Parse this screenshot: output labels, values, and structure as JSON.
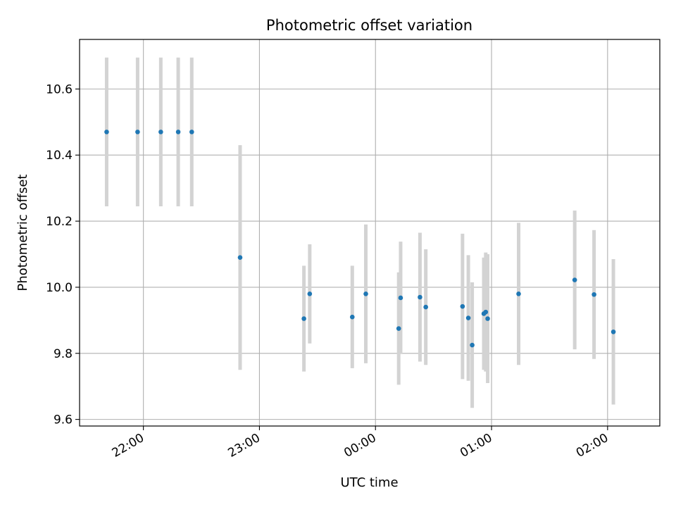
{
  "chart_data": {
    "type": "scatter",
    "title": "Photometric offset variation",
    "xlabel": "UTC time",
    "ylabel": "Photometric offset",
    "x_axis_type": "time",
    "x_range": [
      "21:27",
      "02:27"
    ],
    "ylim": [
      9.58,
      10.75
    ],
    "y_ticks": [
      9.6,
      9.8,
      10.0,
      10.2,
      10.4,
      10.6
    ],
    "y_tick_labels": [
      "9.6",
      "9.8",
      "10.0",
      "10.2",
      "10.4",
      "10.6"
    ],
    "x_ticks": [
      "22:00",
      "23:00",
      "00:00",
      "01:00",
      "02:00"
    ],
    "x_tick_labels": [
      "22:00",
      "23:00",
      "00:00",
      "01:00",
      "02:00"
    ],
    "grid": true,
    "marker_color": "#1f77b4",
    "errorbar_color": "#d3d3d3",
    "points": [
      {
        "x": "21:41",
        "y": 10.47,
        "yerr": 0.225
      },
      {
        "x": "21:57",
        "y": 10.47,
        "yerr": 0.225
      },
      {
        "x": "22:09",
        "y": 10.47,
        "yerr": 0.225
      },
      {
        "x": "22:18",
        "y": 10.47,
        "yerr": 0.225
      },
      {
        "x": "22:25",
        "y": 10.47,
        "yerr": 0.225
      },
      {
        "x": "22:50",
        "y": 10.09,
        "yerr": 0.34
      },
      {
        "x": "23:23",
        "y": 9.905,
        "yerr": 0.16
      },
      {
        "x": "23:26",
        "y": 9.98,
        "yerr": 0.15
      },
      {
        "x": "23:48",
        "y": 9.91,
        "yerr": 0.155
      },
      {
        "x": "23:55",
        "y": 9.98,
        "yerr": 0.21
      },
      {
        "x": "00:12",
        "y": 9.875,
        "yerr": 0.17
      },
      {
        "x": "00:13",
        "y": 9.968,
        "yerr": 0.17
      },
      {
        "x": "00:23",
        "y": 9.97,
        "yerr": 0.195
      },
      {
        "x": "00:26",
        "y": 9.94,
        "yerr": 0.175
      },
      {
        "x": "00:45",
        "y": 9.942,
        "yerr": 0.22
      },
      {
        "x": "00:48",
        "y": 9.907,
        "yerr": 0.19
      },
      {
        "x": "00:50",
        "y": 9.825,
        "yerr": 0.19
      },
      {
        "x": "00:56",
        "y": 9.92,
        "yerr": 0.17
      },
      {
        "x": "00:57",
        "y": 9.925,
        "yerr": 0.18
      },
      {
        "x": "00:58",
        "y": 9.905,
        "yerr": 0.195
      },
      {
        "x": "01:14",
        "y": 9.98,
        "yerr": 0.215
      },
      {
        "x": "01:43",
        "y": 10.022,
        "yerr": 0.21
      },
      {
        "x": "01:53",
        "y": 9.978,
        "yerr": 0.195
      },
      {
        "x": "02:03",
        "y": 9.865,
        "yerr": 0.22
      }
    ]
  }
}
